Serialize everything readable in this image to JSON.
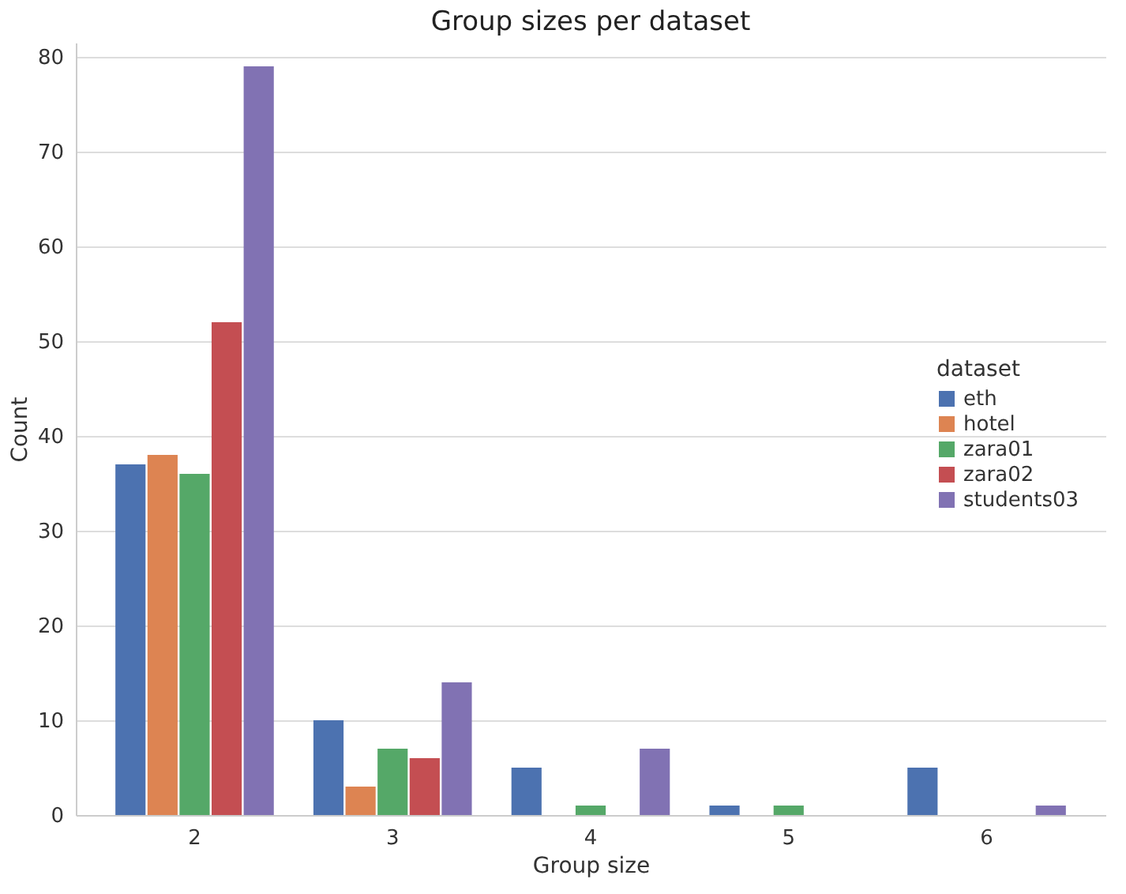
{
  "chart_data": {
    "type": "bar",
    "title": "Group sizes per dataset",
    "xlabel": "Group size",
    "ylabel": "Count",
    "legend_title": "dataset",
    "categories": [
      "2",
      "3",
      "4",
      "5",
      "6"
    ],
    "series": [
      {
        "name": "eth",
        "color": "#4c72b0",
        "values": [
          37,
          10,
          5,
          1,
          5
        ]
      },
      {
        "name": "hotel",
        "color": "#dd8452",
        "values": [
          38,
          3,
          0,
          0,
          0
        ]
      },
      {
        "name": "zara01",
        "color": "#55a868",
        "values": [
          36,
          7,
          1,
          1,
          0
        ]
      },
      {
        "name": "zara02",
        "color": "#c44e52",
        "values": [
          52,
          6,
          0,
          0,
          0
        ]
      },
      {
        "name": "students03",
        "color": "#8172b3",
        "values": [
          79,
          14,
          7,
          0,
          1
        ]
      }
    ],
    "ylim": [
      0,
      81.5
    ],
    "yticks": [
      0,
      10,
      20,
      30,
      40,
      50,
      60,
      70,
      80
    ],
    "grid": "y",
    "legend": "right"
  }
}
